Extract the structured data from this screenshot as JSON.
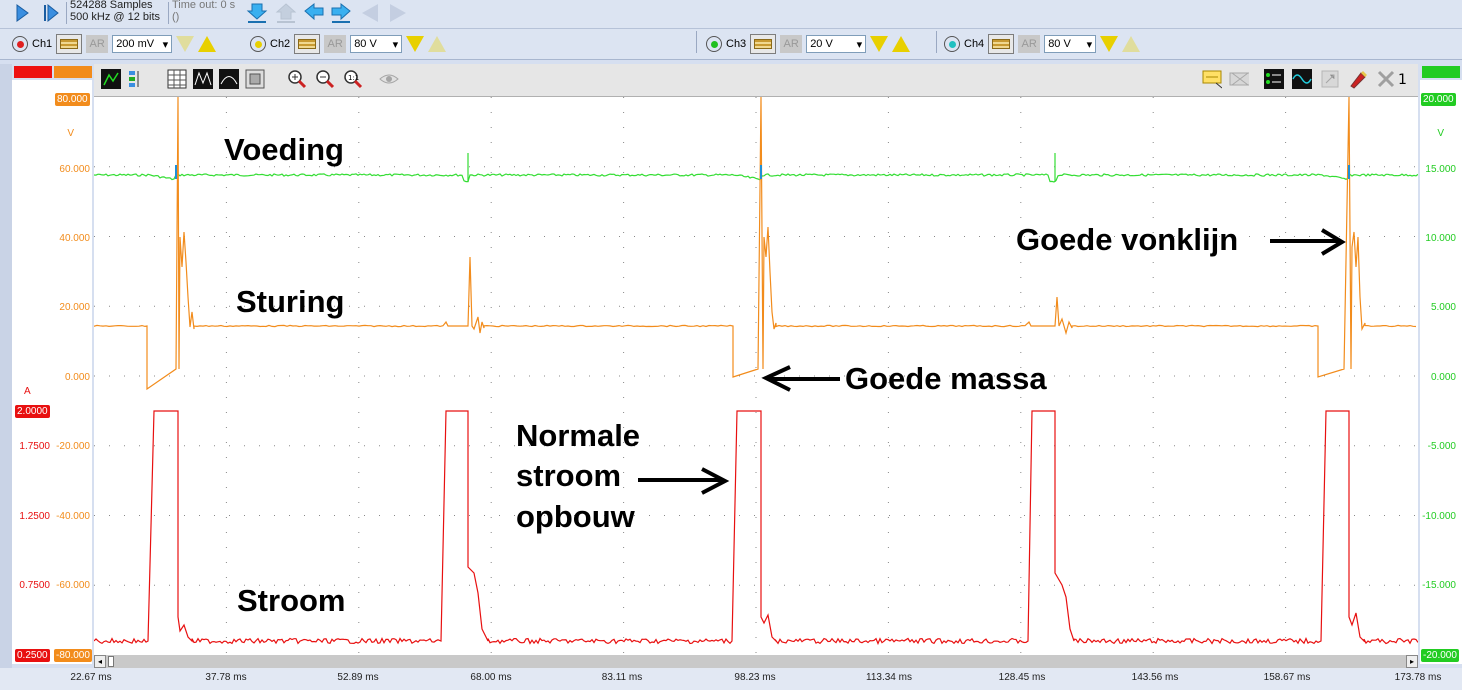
{
  "toolbar": {
    "samples_line1": "524288 Samples",
    "samples_line2": "500 kHz @ 12 bits",
    "timeout_line1": "Time out: 0 s",
    "timeout_line2": "()"
  },
  "channels": [
    {
      "name": "Ch1",
      "color": "#e02020",
      "ar": "AR",
      "range": "200 mV"
    },
    {
      "name": "Ch2",
      "color": "#e8d000",
      "ar": "AR",
      "range": "80 V"
    },
    {
      "name": "Ch3",
      "color": "#20c020",
      "ar": "AR",
      "range": "20 V"
    },
    {
      "name": "Ch4",
      "color": "#20c0c0",
      "ar": "AR",
      "range": "80 V"
    }
  ],
  "plot_toolbar": {
    "right_count": "1"
  },
  "left_axis": {
    "orange_top_badge": "80.000",
    "orange_unit": "V",
    "orange_labels": [
      "60.000",
      "40.000",
      "20.000",
      "0.000"
    ],
    "red_unit": "A",
    "red_top_badge": "2.0000",
    "red_labels": [
      "1.7500",
      "1.2500",
      "0.7500"
    ],
    "red_bottom_badge": "0.2500",
    "orange_lower_labels": [
      "-20.000",
      "-40.000",
      "-60.000"
    ],
    "orange_bottom_badge": "-80.000"
  },
  "right_axis": {
    "top_badge": "20.000",
    "unit": "V",
    "labels": [
      "15.000",
      "10.000",
      "5.000",
      "0.000",
      "-5.000",
      "-10.000",
      "-15.000"
    ],
    "bottom_badge": "-20.000"
  },
  "time_ticks": [
    "22.67 ms",
    "37.78 ms",
    "52.89 ms",
    "68.00 ms",
    "83.11 ms",
    "98.23 ms",
    "113.34 ms",
    "128.45 ms",
    "143.56 ms",
    "158.67 ms",
    "173.78 ms"
  ],
  "annotations": {
    "voeding": "Voeding",
    "sturing": "Sturing",
    "stroom": "Stroom",
    "goede_vonklijn": "Goede vonklijn",
    "goede_massa": "Goede massa",
    "normale_1": "Normale",
    "normale_2": "stroom",
    "normale_3": "opbouw"
  },
  "colors": {
    "voeding": "#33dd33",
    "sturing": "#f28c1c",
    "stroom": "#e81010",
    "accent": "#1e8fd6"
  }
}
